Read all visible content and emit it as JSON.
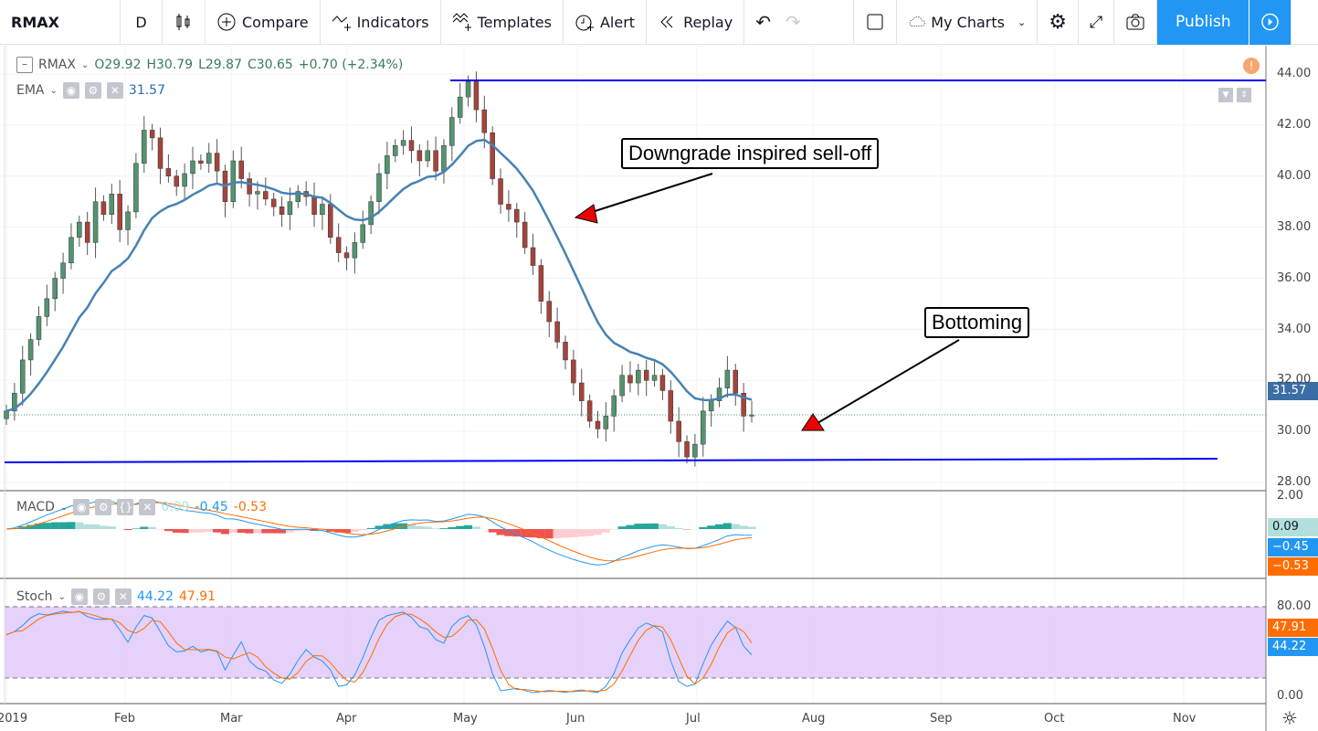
{
  "toolbar": {
    "symbol": "RMAX",
    "interval": "D",
    "compare": "Compare",
    "indicators": "Indicators",
    "templates": "Templates",
    "alert": "Alert",
    "replay": "Replay",
    "my_charts": "My Charts",
    "publish": "Publish"
  },
  "legend": {
    "symbol": "RMAX",
    "open": "O29.92",
    "high": "H30.79",
    "low": "L29.87",
    "close": "C30.65",
    "change": "+0.70 (+2.34%)",
    "ema_label": "EMA",
    "ema_value": "31.57",
    "macd_label": "MACD",
    "macd_hist": "0.09",
    "macd_line": "-0.45",
    "macd_signal": "-0.53",
    "stoch_label": "Stoch",
    "stoch_k": "44.22",
    "stoch_d": "47.91"
  },
  "annotations": [
    "Downgrade inspired sell-off",
    "Bottoming"
  ],
  "price_axis": {
    "ticks": [
      "44.00",
      "42.00",
      "40.00",
      "38.00",
      "36.00",
      "34.00",
      "32.00",
      "30.00",
      "28.00"
    ],
    "ema_tag": "31.57"
  },
  "macd_axis": {
    "ticks": [
      "2.00"
    ],
    "tags": [
      "0.09",
      "−0.45",
      "−0.53"
    ]
  },
  "stoch_axis": {
    "ticks": [
      "80.00",
      "0.00"
    ],
    "tags": [
      "47.91",
      "44.22"
    ]
  },
  "time_axis": [
    "2019",
    "Feb",
    "Mar",
    "Apr",
    "May",
    "Jun",
    "Jul",
    "Aug",
    "Sep",
    "Oct",
    "Nov"
  ],
  "colors": {
    "up": "#53946f",
    "down": "#a4443b",
    "ema": "#4682b4",
    "trendline": "#0000ff",
    "macd": "#2196f3",
    "signal": "#ff6d00",
    "stoch_band": "#e1c9f9",
    "accent": "#2196f3"
  },
  "chart_data": {
    "type": "candlestick",
    "symbol": "RMAX",
    "period": "2019-01-02 to 2019-07-15",
    "close_approx": [
      30.8,
      31.5,
      32.8,
      33.6,
      34.5,
      35.2,
      36.0,
      36.6,
      37.6,
      38.2,
      37.4,
      39.0,
      38.5,
      39.3,
      37.9,
      38.6,
      40.5,
      41.8,
      41.5,
      40.3,
      40.0,
      39.6,
      40.1,
      40.6,
      40.5,
      40.9,
      40.2,
      39.0,
      40.6,
      39.9,
      39.3,
      39.4,
      39.1,
      38.8,
      38.5,
      39.0,
      39.4,
      39.2,
      38.5,
      38.9,
      37.6,
      37.0,
      36.8,
      37.4,
      38.1,
      39.0,
      40.1,
      40.8,
      41.2,
      41.4,
      41.0,
      40.6,
      41.0,
      40.2,
      41.2,
      42.3,
      43.1,
      43.7,
      42.6,
      41.7,
      39.9,
      38.9,
      38.7,
      38.2,
      37.2,
      36.5,
      35.1,
      34.3,
      33.5,
      32.8,
      31.9,
      31.2,
      30.4,
      30.1,
      30.6,
      31.4,
      32.2,
      31.9,
      32.4,
      32.0,
      32.2,
      31.6,
      30.4,
      29.6,
      29.0,
      29.5,
      30.8,
      31.2,
      31.7,
      32.4,
      31.5,
      30.6,
      30.65
    ],
    "ylim": [
      28,
      44
    ],
    "resistance": 43.75,
    "support": 28.85
  }
}
